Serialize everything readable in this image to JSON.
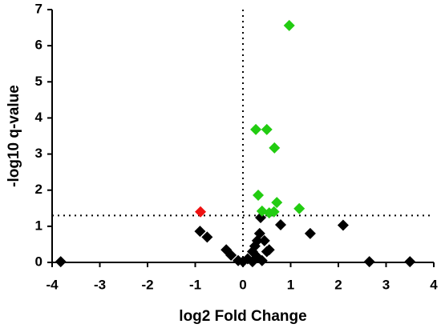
{
  "chart_data": {
    "type": "scatter",
    "xlabel": "log2 Fold Change",
    "ylabel": "-log10 q-value",
    "xlim": [
      -4,
      4
    ],
    "ylim": [
      0,
      7
    ],
    "xticks": [
      -4,
      -3,
      -2,
      -1,
      0,
      1,
      2,
      3,
      4
    ],
    "yticks": [
      0,
      1,
      2,
      3,
      4,
      5,
      6,
      7
    ],
    "hlines": [
      1.3
    ],
    "vlines": [
      0
    ],
    "series": [
      {
        "color": "#000000",
        "x": [
          -3.82,
          -0.9,
          -0.75,
          -0.35,
          -0.25,
          -0.1,
          0.0,
          0.1,
          0.2,
          0.25,
          0.3,
          0.35,
          0.37,
          0.45,
          0.5,
          0.55,
          0.3,
          0.4,
          0.2,
          0.79,
          1.41,
          2.1,
          2.65,
          3.5
        ],
        "values": [
          0.02,
          0.86,
          0.7,
          0.35,
          0.2,
          0.05,
          0.02,
          0.1,
          0.3,
          0.45,
          0.6,
          0.8,
          1.24,
          0.6,
          0.3,
          0.35,
          0.15,
          0.05,
          0.02,
          1.04,
          0.8,
          1.03,
          0.02,
          0.02
        ]
      },
      {
        "color": "#22cc11",
        "x": [
          0.97,
          0.27,
          0.5,
          0.66,
          0.32,
          0.71,
          1.18,
          0.4,
          0.55,
          0.65
        ],
        "values": [
          6.56,
          3.68,
          3.68,
          3.17,
          1.86,
          1.66,
          1.49,
          1.42,
          1.37,
          1.4
        ]
      },
      {
        "color": "#ee1111",
        "x": [
          -0.89
        ],
        "values": [
          1.4
        ]
      }
    ]
  }
}
